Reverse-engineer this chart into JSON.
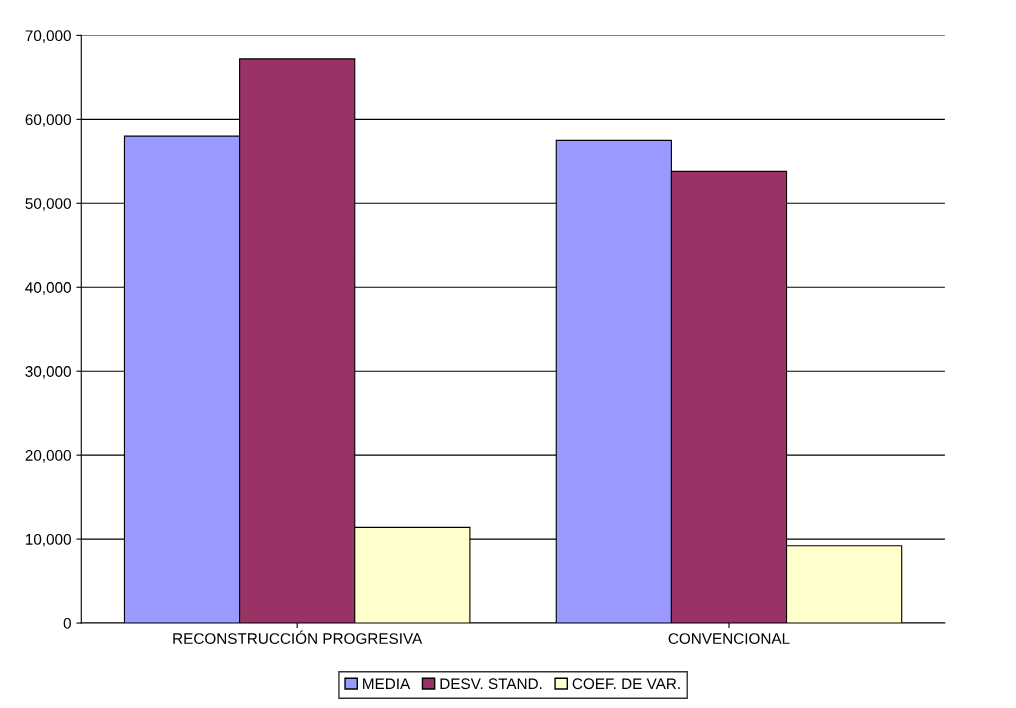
{
  "chart_data": {
    "type": "bar",
    "categories": [
      "RECONSTRUCCIÓN PROGRESIVA",
      "CONVENCIONAL"
    ],
    "series": [
      {
        "name": "MEDIA",
        "color": "#9999ff",
        "values": [
          58000,
          57500
        ]
      },
      {
        "name": "DESV. STAND.",
        "color": "#993366",
        "values": [
          67200,
          53800
        ]
      },
      {
        "name": "COEF. DE VAR.",
        "color": "#ffffcc",
        "values": [
          11400,
          9200
        ]
      }
    ],
    "ylim": [
      0,
      70000
    ],
    "yticks": [
      {
        "value": 0,
        "label": "0"
      },
      {
        "value": 10000,
        "label": "10,000"
      },
      {
        "value": 20000,
        "label": "20,000"
      },
      {
        "value": 30000,
        "label": "30,000"
      },
      {
        "value": 40000,
        "label": "40,000"
      },
      {
        "value": 50000,
        "label": "50,000"
      },
      {
        "value": 60000,
        "label": "60,000"
      },
      {
        "value": 70000,
        "label": "70,000"
      }
    ],
    "grid": "y",
    "legend": "bottom"
  }
}
